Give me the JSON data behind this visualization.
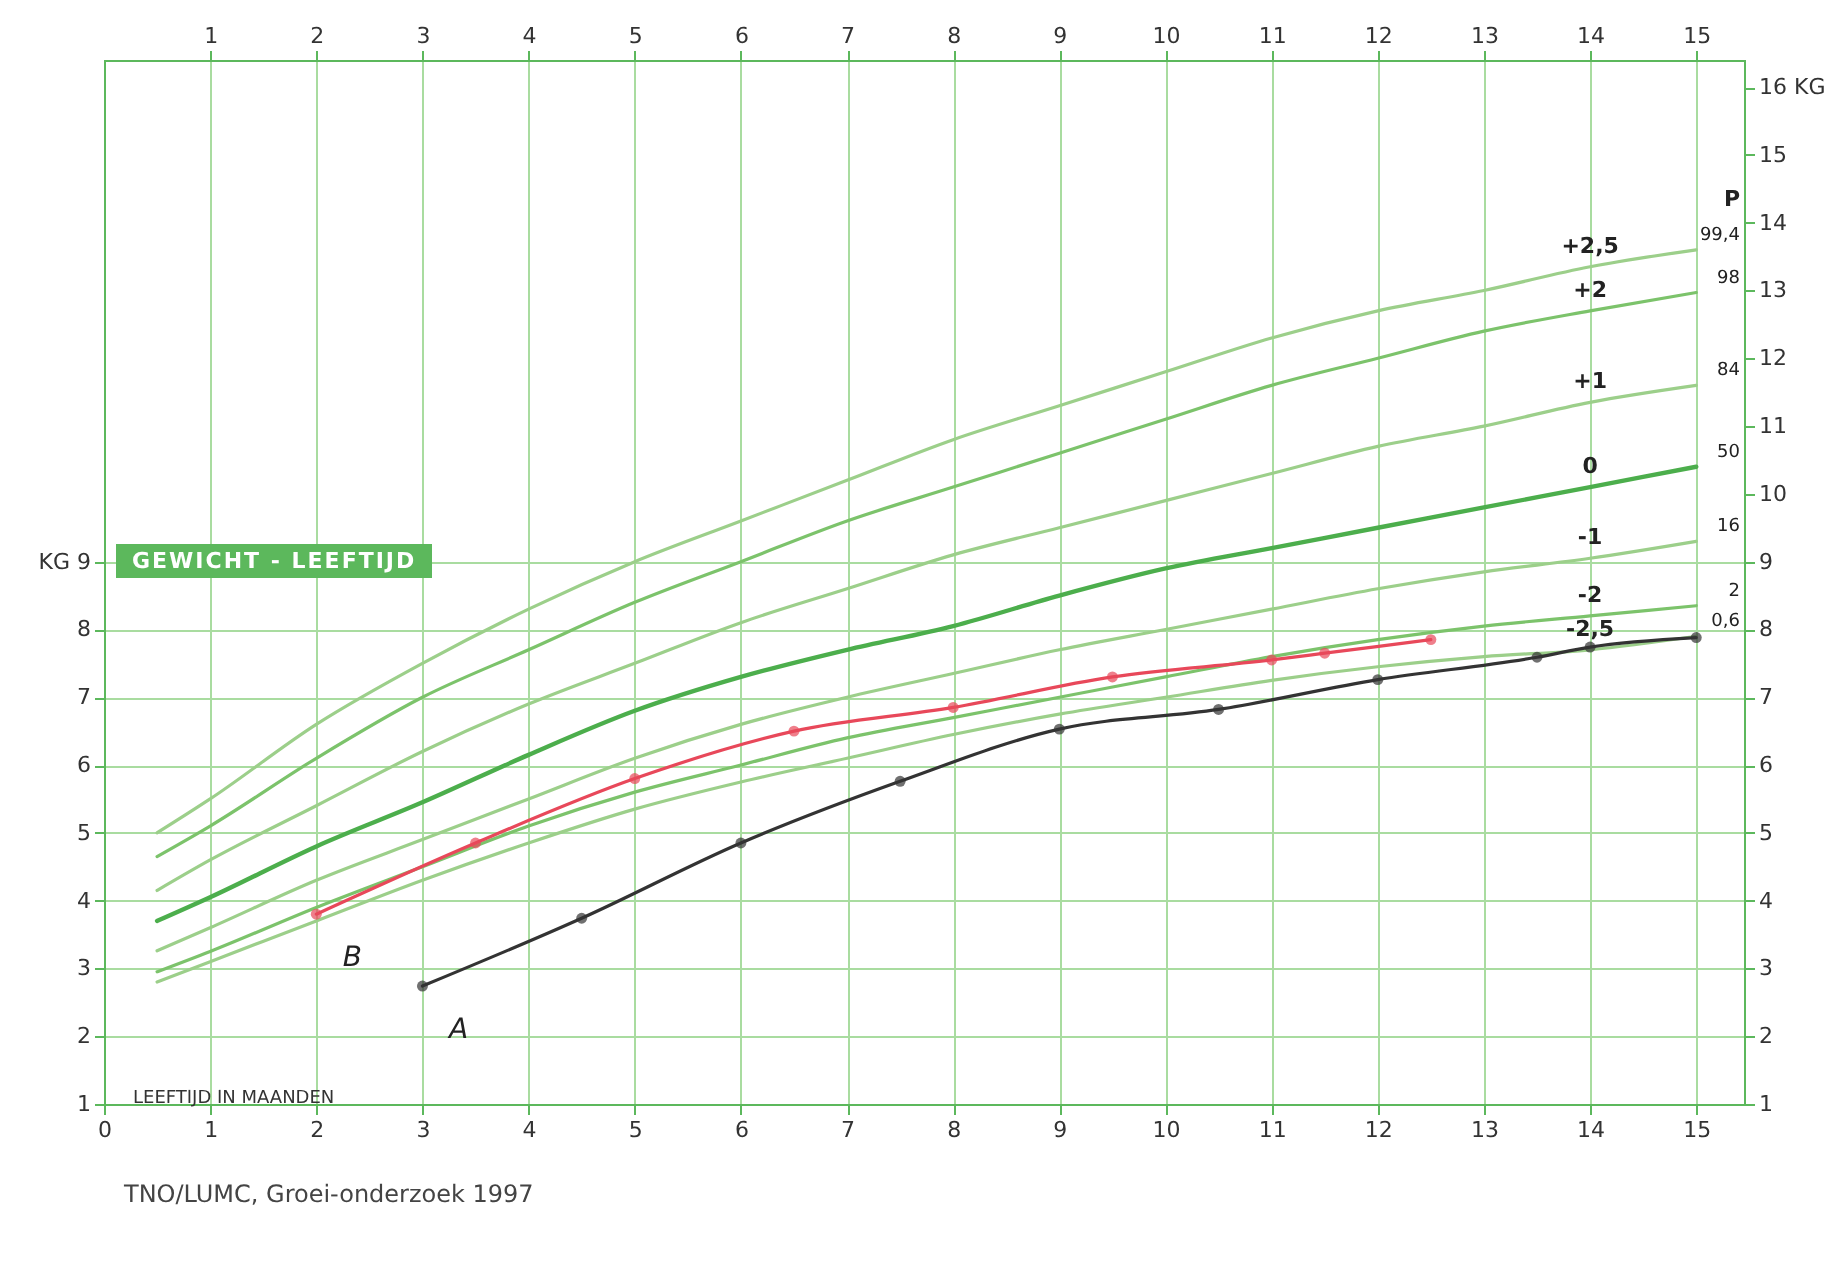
{
  "chart_data": {
    "type": "line",
    "title": "GEWICHT - LEEFTIJD",
    "xlabel": "LEEFTIJD IN MAANDEN",
    "x": [
      0.5,
      1,
      2,
      3,
      4,
      5,
      6,
      7,
      8,
      9,
      10,
      11,
      12,
      13,
      14,
      15
    ],
    "series": [
      {
        "name": "+2,5",
        "color": "#9ccf8a",
        "marker": "none",
        "values": [
          5.0,
          5.5,
          6.6,
          7.5,
          8.3,
          9.0,
          9.6,
          10.2,
          10.8,
          11.3,
          11.8,
          12.3,
          12.7,
          13.0,
          13.35,
          13.6
        ]
      },
      {
        "name": "+2",
        "color": "#7cc36b",
        "marker": "none",
        "values": [
          4.65,
          5.1,
          6.1,
          7.0,
          7.7,
          8.4,
          9.0,
          9.6,
          10.1,
          10.6,
          11.1,
          11.6,
          12.0,
          12.4,
          12.7,
          12.97
        ]
      },
      {
        "name": "+1",
        "color": "#9ccf8a",
        "marker": "none",
        "values": [
          4.15,
          4.6,
          5.4,
          6.2,
          6.9,
          7.5,
          8.1,
          8.6,
          9.1,
          9.5,
          9.9,
          10.3,
          10.7,
          11.0,
          11.35,
          11.6
        ]
      },
      {
        "name": "0",
        "color": "#4cae4c",
        "marker": "none",
        "values": [
          3.7,
          4.05,
          4.8,
          5.45,
          6.15,
          6.8,
          7.3,
          7.7,
          8.05,
          8.5,
          8.9,
          9.2,
          9.5,
          9.8,
          10.1,
          10.4
        ]
      },
      {
        "name": "-1",
        "color": "#9ccf8a",
        "marker": "none",
        "values": [
          3.26,
          3.6,
          4.3,
          4.9,
          5.5,
          6.1,
          6.6,
          7.0,
          7.35,
          7.7,
          8.0,
          8.3,
          8.6,
          8.85,
          9.05,
          9.3
        ]
      },
      {
        "name": "-2",
        "color": "#7cc36b",
        "marker": "none",
        "values": [
          2.95,
          3.25,
          3.9,
          4.5,
          5.1,
          5.6,
          6.0,
          6.4,
          6.7,
          7.0,
          7.3,
          7.6,
          7.85,
          8.05,
          8.2,
          8.35
        ]
      },
      {
        "name": "-2,5",
        "color": "#9ccf8a",
        "marker": "none",
        "values": [
          2.8,
          3.1,
          3.7,
          4.3,
          4.85,
          5.35,
          5.75,
          6.1,
          6.45,
          6.75,
          7.0,
          7.25,
          7.45,
          7.6,
          7.7,
          7.9
        ]
      },
      {
        "name": "B",
        "color": "#e8485a",
        "marker": "circle",
        "x": [
          2,
          3.5,
          5,
          6.5,
          8,
          9.5,
          11,
          11.5,
          12.5
        ],
        "values": [
          3.8,
          4.85,
          5.8,
          6.5,
          6.85,
          7.3,
          7.55,
          7.65,
          7.85
        ]
      },
      {
        "name": "A",
        "color": "#333333",
        "marker": "circle",
        "x": [
          3,
          4.5,
          6,
          7.5,
          9,
          10.5,
          12,
          13.5,
          14,
          15
        ],
        "values": [
          2.74,
          3.74,
          4.85,
          5.76,
          6.53,
          6.82,
          7.26,
          7.59,
          7.74,
          7.88
        ]
      }
    ],
    "xlim": [
      0,
      15.45
    ],
    "xticks": [
      0,
      1,
      2,
      3,
      4,
      5,
      6,
      7,
      8,
      9,
      10,
      11,
      12,
      13,
      14,
      15
    ],
    "ylim": [
      1,
      16.4
    ],
    "yticks": [
      1,
      2,
      3,
      4,
      5,
      6,
      7,
      8,
      {
        "value": 9,
        "label": "KG 9"
      }
    ],
    "y2lim": [
      1,
      16.4
    ],
    "y2ticks": [
      1,
      2,
      3,
      4,
      5,
      6,
      7,
      8,
      9,
      10,
      11,
      12,
      13,
      14,
      15,
      {
        "value": 16,
        "label": "16 KG"
      }
    ],
    "grid": true,
    "line_style": "solid",
    "x2lim": [
      0,
      15.45
    ],
    "x2ticks": [
      1,
      2,
      3,
      4,
      5,
      6,
      7,
      8,
      9,
      10,
      11,
      12,
      13,
      14,
      15
    ],
    "annotations": [
      "P",
      "99,4",
      "98",
      "84",
      "50",
      "16",
      "2",
      "0,6",
      "TNO/LUMC, Groei-onderzoek 1997"
    ]
  }
}
